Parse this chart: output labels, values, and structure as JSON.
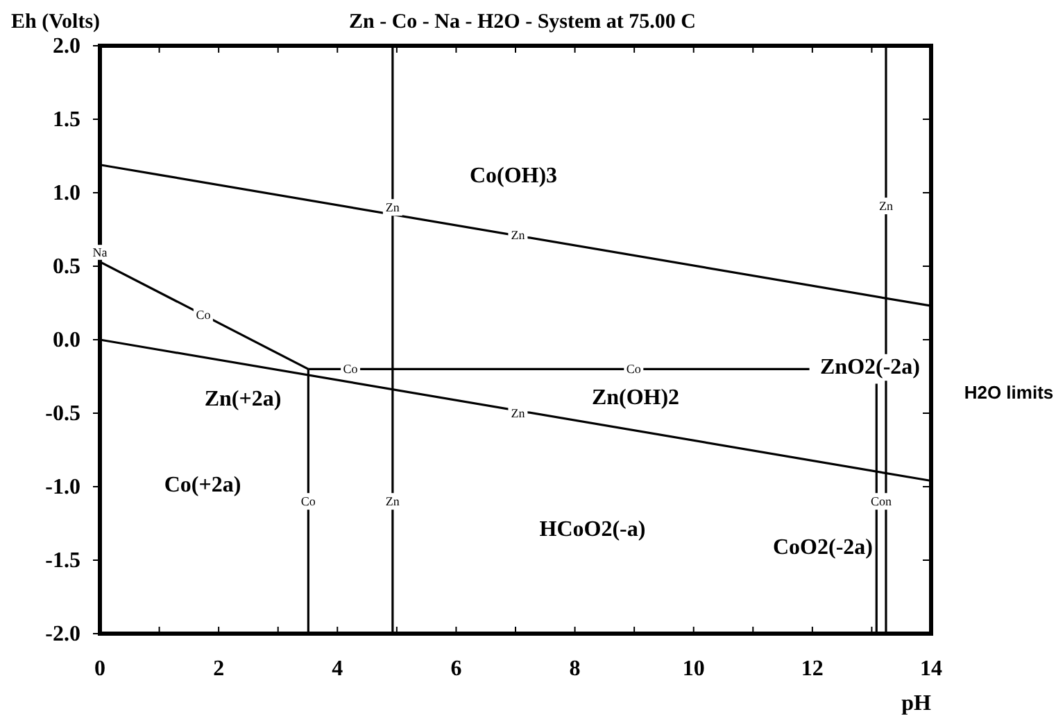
{
  "chart_data": {
    "type": "line",
    "title": "Zn - Co - Na - H2O - System at 75.00 C",
    "xlabel": "pH",
    "ylabel": "Eh (Volts)",
    "xlim": [
      0,
      14
    ],
    "ylim": [
      -2.0,
      2.0
    ],
    "xticks": [
      0,
      {
        "value": 1,
        "label": null
      },
      2,
      {
        "value": 3,
        "label": null
      },
      4,
      {
        "value": 5,
        "label": null
      },
      6,
      {
        "value": 7,
        "label": null
      },
      8,
      {
        "value": 9,
        "label": null
      },
      10,
      {
        "value": 11,
        "label": null
      },
      12,
      {
        "value": 13,
        "label": null
      },
      14
    ],
    "yticks": [
      {
        "value": -2,
        "label": "-2.0"
      },
      -1.5,
      {
        "value": -1,
        "label": "-1.0"
      },
      -0.5,
      {
        "value": 0,
        "label": "0.0"
      },
      0.5,
      {
        "value": 1,
        "label": "1.0"
      },
      1.5,
      {
        "value": 2,
        "label": "2.0"
      }
    ],
    "series": [
      {
        "color": "#000000",
        "x": [
          0,
          14
        ],
        "values": [
          1.19,
          0.23
        ]
      },
      {
        "color": "#000000",
        "x": [
          0,
          14
        ],
        "values": [
          0.0,
          -0.96
        ]
      },
      {
        "color": "#000000",
        "x": [
          0,
          3.51
        ],
        "values": [
          0.53,
          -0.2
        ]
      },
      {
        "color": "#000000",
        "x": [
          3.51,
          11.95
        ],
        "values": [
          -0.2,
          -0.2
        ]
      },
      {
        "color": "#000000",
        "x": [
          3.51,
          3.51
        ],
        "values": [
          -2.0,
          -0.2
        ]
      },
      {
        "color": "#000000",
        "x": [
          4.93,
          4.93
        ],
        "values": [
          -2.0,
          2.0
        ]
      },
      {
        "color": "#000000",
        "x": [
          13.08,
          13.08
        ],
        "values": [
          -2.0,
          -0.3
        ]
      },
      {
        "color": "#000000",
        "x": [
          13.24,
          13.24
        ],
        "values": [
          -2.0,
          2.0
        ]
      }
    ],
    "annotations": [
      "Na",
      {
        "text": "Co",
        "x": 1.74,
        "y": 0.17
      },
      {
        "text": "Zn",
        "x": 4.93,
        "y": 0.9
      },
      {
        "text": "Zn",
        "x": 7.04,
        "y": 0.71
      },
      {
        "text": "Zn",
        "x": 13.24,
        "y": 0.91
      },
      {
        "text": "Co",
        "x": 4.22,
        "y": -0.2
      },
      {
        "text": "Co",
        "x": 8.99,
        "y": -0.2
      },
      {
        "text": "Zn",
        "x": 7.04,
        "y": -0.5
      },
      {
        "text": "Co",
        "x": 3.51,
        "y": -1.1
      },
      {
        "text": "Zn",
        "x": 4.93,
        "y": -1.1
      },
      {
        "text": "Con",
        "x": 13.16,
        "y": -1.1
      },
      "Co(OH)3",
      "Zn(+2a)",
      "Zn(OH)2",
      "ZnO2(-2a)",
      "Co(+2a)",
      "HCoO2(-a)",
      "CoO2(-2a)",
      "H2O limits"
    ]
  }
}
